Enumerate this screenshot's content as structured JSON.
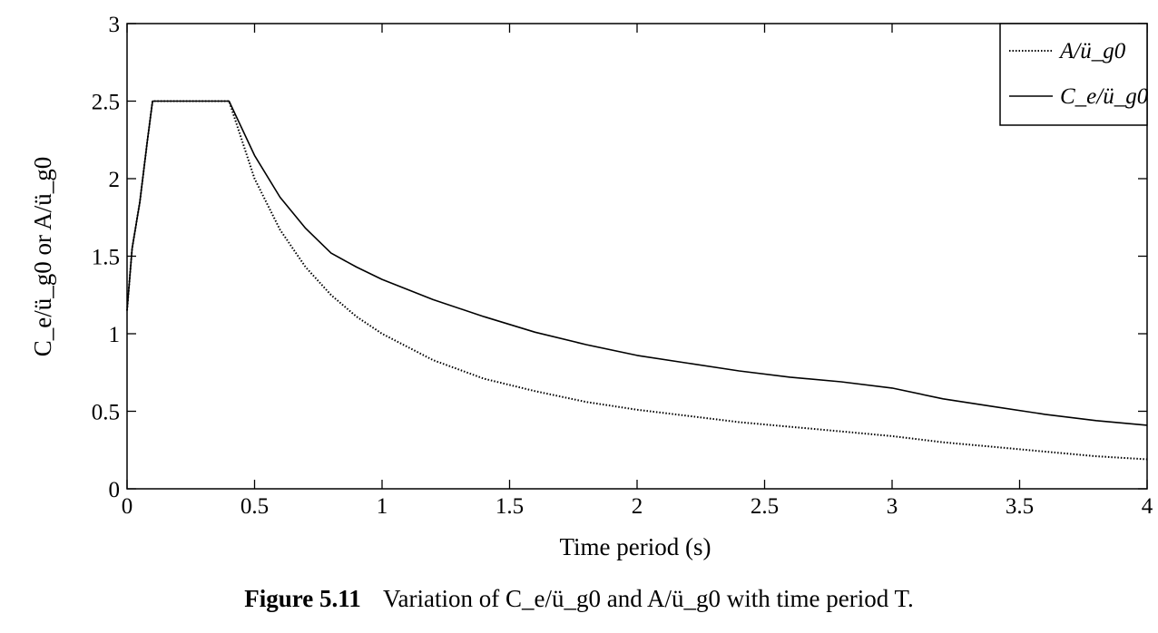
{
  "chart_data": {
    "type": "line",
    "xlabel": "Time period (s)",
    "ylabel": "C_e/ü_g0 or A/ü_g0",
    "xlim": [
      0,
      4
    ],
    "ylim": [
      0,
      3
    ],
    "xticks": [
      0,
      0.5,
      1,
      1.5,
      2,
      2.5,
      3,
      3.5,
      4
    ],
    "yticks": [
      0,
      0.5,
      1,
      1.5,
      2,
      2.5,
      3
    ],
    "xtick_labels": [
      "0",
      "0.5",
      "1",
      "1.5",
      "2",
      "2.5",
      "3",
      "3.5",
      "4"
    ],
    "ytick_labels": [
      "0",
      "0.5",
      "1",
      "1.5",
      "2",
      "2.5",
      "3"
    ],
    "grid": false,
    "legend_position": "top-right",
    "series": [
      {
        "name": "A/ü_g0",
        "line_style": "dotted",
        "x": [
          0,
          0.02,
          0.05,
          0.08,
          0.1,
          0.4,
          0.5,
          0.6,
          0.7,
          0.8,
          0.9,
          1.0,
          1.2,
          1.4,
          1.6,
          1.8,
          2.0,
          2.2,
          2.4,
          2.6,
          2.8,
          3.0,
          3.2,
          3.4,
          3.6,
          3.8,
          4.0
        ],
        "y": [
          1.15,
          1.55,
          1.85,
          2.25,
          2.5,
          2.5,
          2.0,
          1.67,
          1.43,
          1.25,
          1.11,
          1.0,
          0.83,
          0.71,
          0.63,
          0.56,
          0.51,
          0.47,
          0.43,
          0.4,
          0.37,
          0.34,
          0.3,
          0.27,
          0.24,
          0.21,
          0.19
        ]
      },
      {
        "name": "C_e/ü_g0",
        "line_style": "solid",
        "x": [
          0,
          0.02,
          0.05,
          0.08,
          0.1,
          0.4,
          0.5,
          0.6,
          0.7,
          0.8,
          0.9,
          1.0,
          1.2,
          1.4,
          1.6,
          1.8,
          2.0,
          2.2,
          2.4,
          2.6,
          2.8,
          3.0,
          3.2,
          3.4,
          3.6,
          3.8,
          4.0
        ],
        "y": [
          1.15,
          1.55,
          1.85,
          2.25,
          2.5,
          2.5,
          2.15,
          1.88,
          1.68,
          1.52,
          1.43,
          1.35,
          1.22,
          1.11,
          1.01,
          0.93,
          0.86,
          0.81,
          0.76,
          0.72,
          0.69,
          0.65,
          0.58,
          0.53,
          0.48,
          0.44,
          0.41
        ]
      }
    ],
    "legend": [
      "A/ü_g0",
      "C_e/ü_g0"
    ]
  },
  "caption": {
    "label": "Figure 5.11",
    "text": "Variation of C_e/ü_g0 and A/ü_g0 with time period T."
  }
}
